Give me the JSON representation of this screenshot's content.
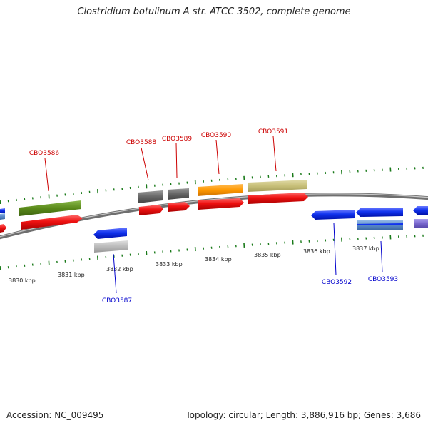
{
  "title": "Clostridium botulinum A str. ATCC 3502, complete genome",
  "footer": {
    "accession": "Accession: NC_009495",
    "summary": "Topology: circular; Length: 3,886,916 bp; Genes: 3,686"
  },
  "scale_labels": [
    "3830 kbp",
    "3831 kbp",
    "3832 kbp",
    "3833 kbp",
    "3834 kbp",
    "3835 kbp",
    "3836 kbp",
    "3837 kbp"
  ],
  "gene_labels": {
    "forward": [
      "CBO3586",
      "CBO3588",
      "CBO3589",
      "CBO3590",
      "CBO3591"
    ],
    "reverse": [
      "CBO3587",
      "CBO3592",
      "CBO3593"
    ]
  },
  "colors": {
    "forward_label": "#cc0000",
    "reverse_label": "#0000cc",
    "tick": "#1a7a1a",
    "backbone": "#808080",
    "red": "#ee1111",
    "blue": "#1133ee",
    "olive": "#5a8a1a",
    "gray": "#666666",
    "orange": "#ff9900",
    "khaki": "#c8c07a",
    "lightgray": "#bbbbbb",
    "steelblue": "#5a8ac8",
    "purple": "#7766cc"
  }
}
